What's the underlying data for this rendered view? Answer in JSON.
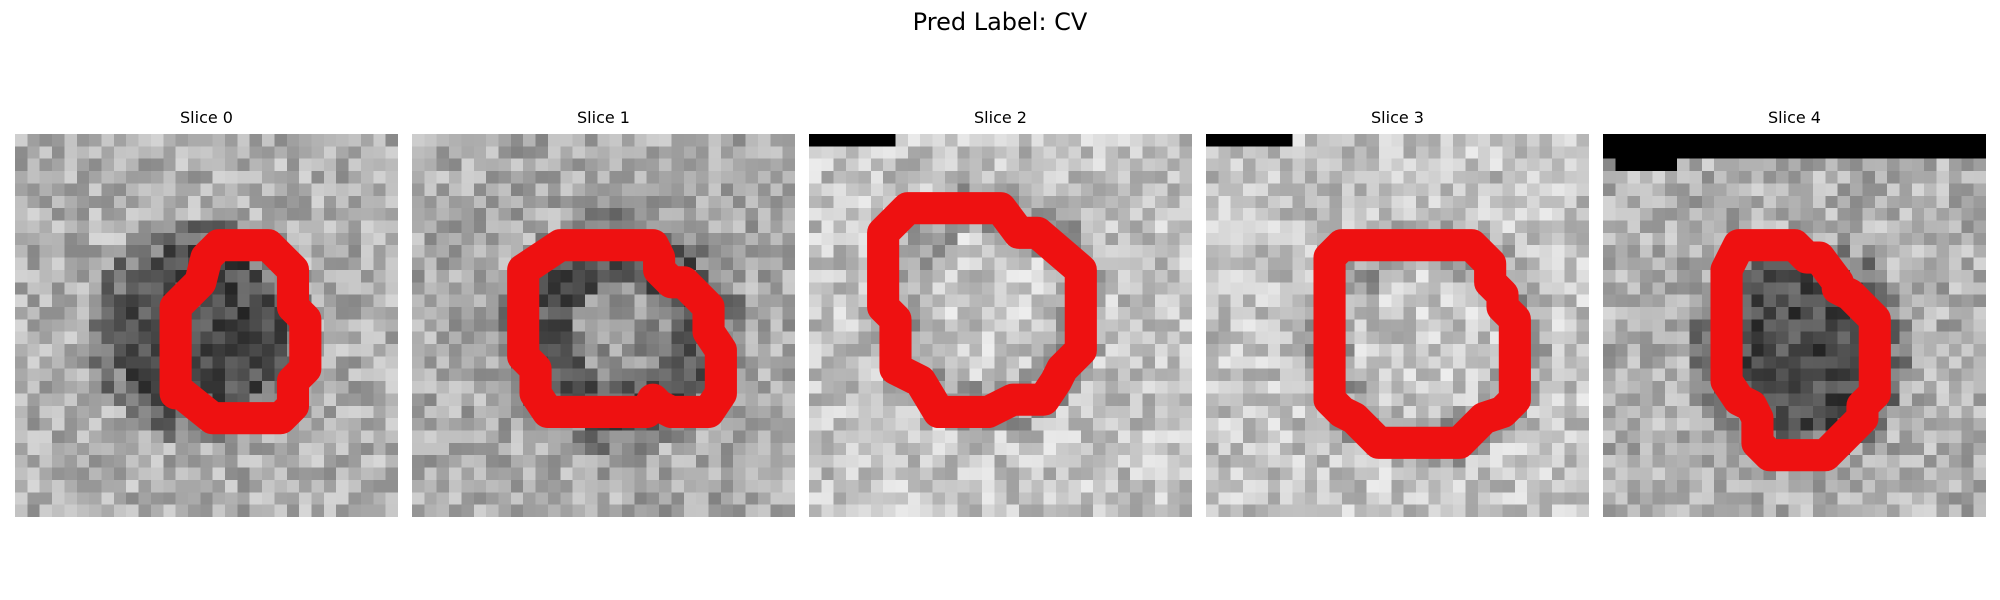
{
  "figure": {
    "title": "Pred Label: CV"
  },
  "slices": [
    {
      "title": "Slice 0",
      "seed": 11,
      "lesion": "dark",
      "blackTop": []
    },
    {
      "title": "Slice 1",
      "seed": 23,
      "lesion": "ring",
      "blackTop": []
    },
    {
      "title": "Slice 2",
      "seed": 37,
      "lesion": "light",
      "blackTop": [
        [
          0,
          6,
          1
        ],
        [
          0,
          0,
          0
        ],
        [
          3,
          4,
          1
        ]
      ]
    },
    {
      "title": "Slice 3",
      "seed": 41,
      "lesion": "light",
      "blackTop": [
        [
          0,
          6,
          1
        ],
        [
          2,
          3,
          1
        ]
      ]
    },
    {
      "title": "Slice 4",
      "seed": 53,
      "lesion": "dark",
      "blackTop": [
        [
          0,
          31,
          2
        ],
        [
          1,
          5,
          3
        ],
        [
          5,
          30,
          1
        ],
        [
          10,
          12,
          1
        ],
        [
          13,
          19,
          2
        ]
      ]
    }
  ],
  "colors": {
    "contour": "#ee1111",
    "mask": "#000000"
  }
}
